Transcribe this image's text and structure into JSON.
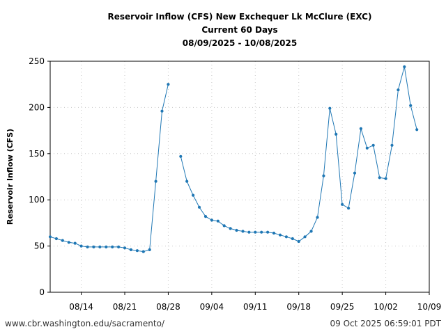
{
  "chart_data": {
    "type": "line",
    "title_lines": [
      "Reservoir Inflow (CFS) New Exchequer Lk McClure (EXC)",
      "Current 60 Days",
      "08/09/2025 - 10/08/2025"
    ],
    "xlabel": "",
    "ylabel": "Reservoir Inflow (CFS)",
    "x_range": [
      "2025-08-09",
      "2025-10-09"
    ],
    "xlim_days": [
      0,
      61
    ],
    "ylim": [
      0,
      250
    ],
    "y_ticks": [
      0,
      50,
      100,
      150,
      200,
      250
    ],
    "x_ticks": [
      {
        "day": 5,
        "label": "08/14"
      },
      {
        "day": 12,
        "label": "08/21"
      },
      {
        "day": 19,
        "label": "08/28"
      },
      {
        "day": 26,
        "label": "09/04"
      },
      {
        "day": 33,
        "label": "09/11"
      },
      {
        "day": 40,
        "label": "09/18"
      },
      {
        "day": 47,
        "label": "09/25"
      },
      {
        "day": 54,
        "label": "10/02"
      },
      {
        "day": 61,
        "label": "10/09"
      }
    ],
    "grid": true,
    "series": [
      {
        "name": "",
        "color": "#1f77b4",
        "points": [
          [
            0,
            60
          ],
          [
            1,
            58
          ],
          [
            2,
            56
          ],
          [
            3,
            54
          ],
          [
            4,
            53
          ],
          [
            5,
            50
          ],
          [
            6,
            49
          ],
          [
            7,
            49
          ],
          [
            8,
            49
          ],
          [
            9,
            49
          ],
          [
            10,
            49
          ],
          [
            11,
            49
          ],
          [
            12,
            48
          ],
          [
            13,
            46
          ],
          [
            14,
            45
          ],
          [
            15,
            44
          ],
          [
            16,
            46
          ],
          [
            17,
            120
          ],
          [
            18,
            196
          ],
          [
            19,
            225
          ],
          [
            20,
            null
          ],
          [
            21,
            147
          ],
          [
            22,
            120
          ],
          [
            23,
            105
          ],
          [
            24,
            92
          ],
          [
            25,
            82
          ],
          [
            26,
            78
          ],
          [
            27,
            77
          ],
          [
            28,
            72
          ],
          [
            29,
            69
          ],
          [
            30,
            67
          ],
          [
            31,
            66
          ],
          [
            32,
            65
          ],
          [
            33,
            65
          ],
          [
            34,
            65
          ],
          [
            35,
            65
          ],
          [
            36,
            64
          ],
          [
            37,
            62
          ],
          [
            38,
            60
          ],
          [
            39,
            58
          ],
          [
            40,
            55
          ],
          [
            41,
            60
          ],
          [
            42,
            66
          ],
          [
            43,
            81
          ],
          [
            44,
            126
          ],
          [
            45,
            199
          ],
          [
            46,
            171
          ],
          [
            47,
            95
          ],
          [
            48,
            91
          ],
          [
            49,
            129
          ],
          [
            50,
            177
          ],
          [
            51,
            156
          ],
          [
            52,
            159
          ],
          [
            53,
            124
          ],
          [
            54,
            123
          ],
          [
            55,
            159
          ],
          [
            56,
            219
          ],
          [
            57,
            244
          ],
          [
            58,
            202
          ],
          [
            59,
            176
          ]
        ]
      }
    ]
  },
  "footer": {
    "left": "www.cbr.washington.edu/sacramento/",
    "right": "09 Oct 2025 06:59:01 PDT"
  }
}
